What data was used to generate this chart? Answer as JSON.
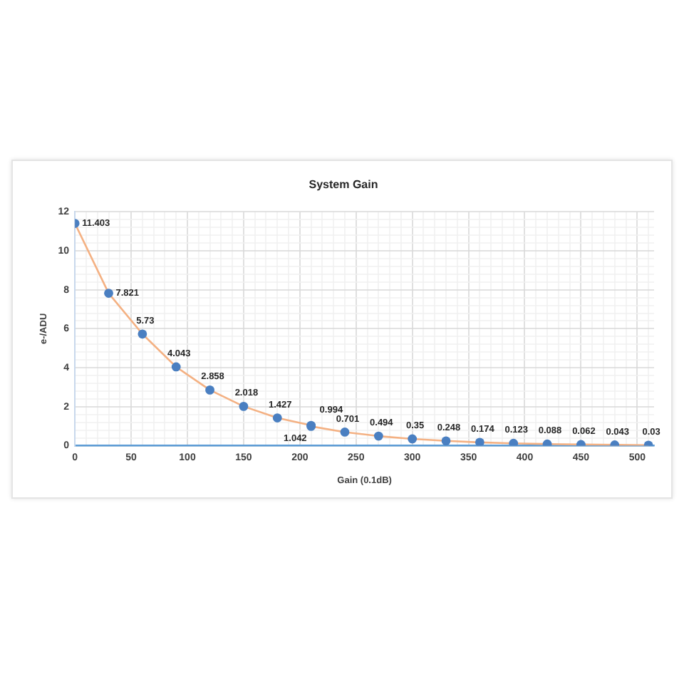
{
  "chart_data": {
    "type": "line",
    "title": "System Gain",
    "xlabel": "Gain (0.1dB)",
    "ylabel": "e-/ADU",
    "x": [
      0,
      30,
      60,
      90,
      120,
      150,
      180,
      210,
      210,
      240,
      270,
      300,
      330,
      360,
      390,
      420,
      450,
      480,
      510
    ],
    "series": [
      {
        "color": "#f4b183",
        "values": [
          11.403,
          7.821,
          5.73,
          4.043,
          2.858,
          2.018,
          1.427,
          1.042,
          0.994,
          0.701,
          0.494,
          0.35,
          0.248,
          0.174,
          0.123,
          0.088,
          0.062,
          0.043,
          0.03
        ],
        "colors": [
          "#4a7fc1",
          "#4a7fc1",
          "#4a7fc1",
          "#4a7fc1",
          "#4a7fc1",
          "#4a7fc1",
          "#4a7fc1",
          "#4a7fc1",
          "#4a7fc1",
          "#4a7fc1",
          "#4a7fc1",
          "#4a7fc1",
          "#4a7fc1",
          "#4a7fc1",
          "#4a7fc1",
          "#4a7fc1",
          "#4a7fc1",
          "#4a7fc1",
          "#4a7fc1"
        ]
      }
    ],
    "xlim": [
      0,
      515
    ],
    "xticks": [
      0,
      {
        "value": 10,
        "label": null
      },
      {
        "value": 20,
        "label": null
      },
      {
        "value": 30,
        "label": null
      },
      {
        "value": 40,
        "label": null
      },
      50,
      {
        "value": 60,
        "label": null
      },
      {
        "value": 70,
        "label": null
      },
      {
        "value": 80,
        "label": null
      },
      {
        "value": 90,
        "label": null
      },
      100,
      {
        "value": 110,
        "label": null
      },
      {
        "value": 120,
        "label": null
      },
      {
        "value": 130,
        "label": null
      },
      {
        "value": 140,
        "label": null
      },
      150,
      {
        "value": 160,
        "label": null
      },
      {
        "value": 170,
        "label": null
      },
      {
        "value": 180,
        "label": null
      },
      {
        "value": 190,
        "label": null
      },
      200,
      {
        "value": 210,
        "label": null
      },
      {
        "value": 220,
        "label": null
      },
      {
        "value": 230,
        "label": null
      },
      {
        "value": 240,
        "label": null
      },
      250,
      {
        "value": 260,
        "label": null
      },
      {
        "value": 270,
        "label": null
      },
      {
        "value": 280,
        "label": null
      },
      {
        "value": 290,
        "label": null
      },
      300,
      {
        "value": 310,
        "label": null
      },
      {
        "value": 320,
        "label": null
      },
      {
        "value": 330,
        "label": null
      },
      {
        "value": 340,
        "label": null
      },
      350,
      {
        "value": 360,
        "label": null
      },
      {
        "value": 370,
        "label": null
      },
      {
        "value": 380,
        "label": null
      },
      {
        "value": 390,
        "label": null
      },
      400,
      {
        "value": 410,
        "label": null
      },
      {
        "value": 420,
        "label": null
      },
      {
        "value": 430,
        "label": null
      },
      {
        "value": 440,
        "label": null
      },
      450,
      {
        "value": 460,
        "label": null
      },
      {
        "value": 470,
        "label": null
      },
      {
        "value": 480,
        "label": null
      },
      {
        "value": 490,
        "label": null
      },
      500,
      {
        "value": 510,
        "label": null
      }
    ],
    "ylim": [
      0,
      12
    ],
    "yticks": [
      0,
      {
        "value": 0.4,
        "label": null
      },
      {
        "value": 0.8,
        "label": null
      },
      {
        "value": 1.2,
        "label": null
      },
      {
        "value": 1.6,
        "label": null
      },
      2,
      {
        "value": 2.4,
        "label": null
      },
      {
        "value": 2.8,
        "label": null
      },
      {
        "value": 3.2,
        "label": null
      },
      {
        "value": 3.6,
        "label": null
      },
      4,
      {
        "value": 4.4,
        "label": null
      },
      {
        "value": 4.8,
        "label": null
      },
      {
        "value": 5.2,
        "label": null
      },
      {
        "value": 5.6,
        "label": null
      },
      6,
      {
        "value": 6.4,
        "label": null
      },
      {
        "value": 6.8,
        "label": null
      },
      {
        "value": 7.2,
        "label": null
      },
      {
        "value": 7.6,
        "label": null
      },
      8,
      {
        "value": 8.4,
        "label": null
      },
      {
        "value": 8.8,
        "label": null
      },
      {
        "value": 9.2,
        "label": null
      },
      {
        "value": 9.6,
        "label": null
      },
      10,
      {
        "value": 10.4,
        "label": null
      },
      {
        "value": 10.8,
        "label": null
      },
      {
        "value": 11.2,
        "label": null
      },
      {
        "value": 11.6,
        "label": null
      },
      12
    ],
    "grid": true,
    "marker": "circle",
    "line_style": "solid",
    "data_labels": true
  }
}
